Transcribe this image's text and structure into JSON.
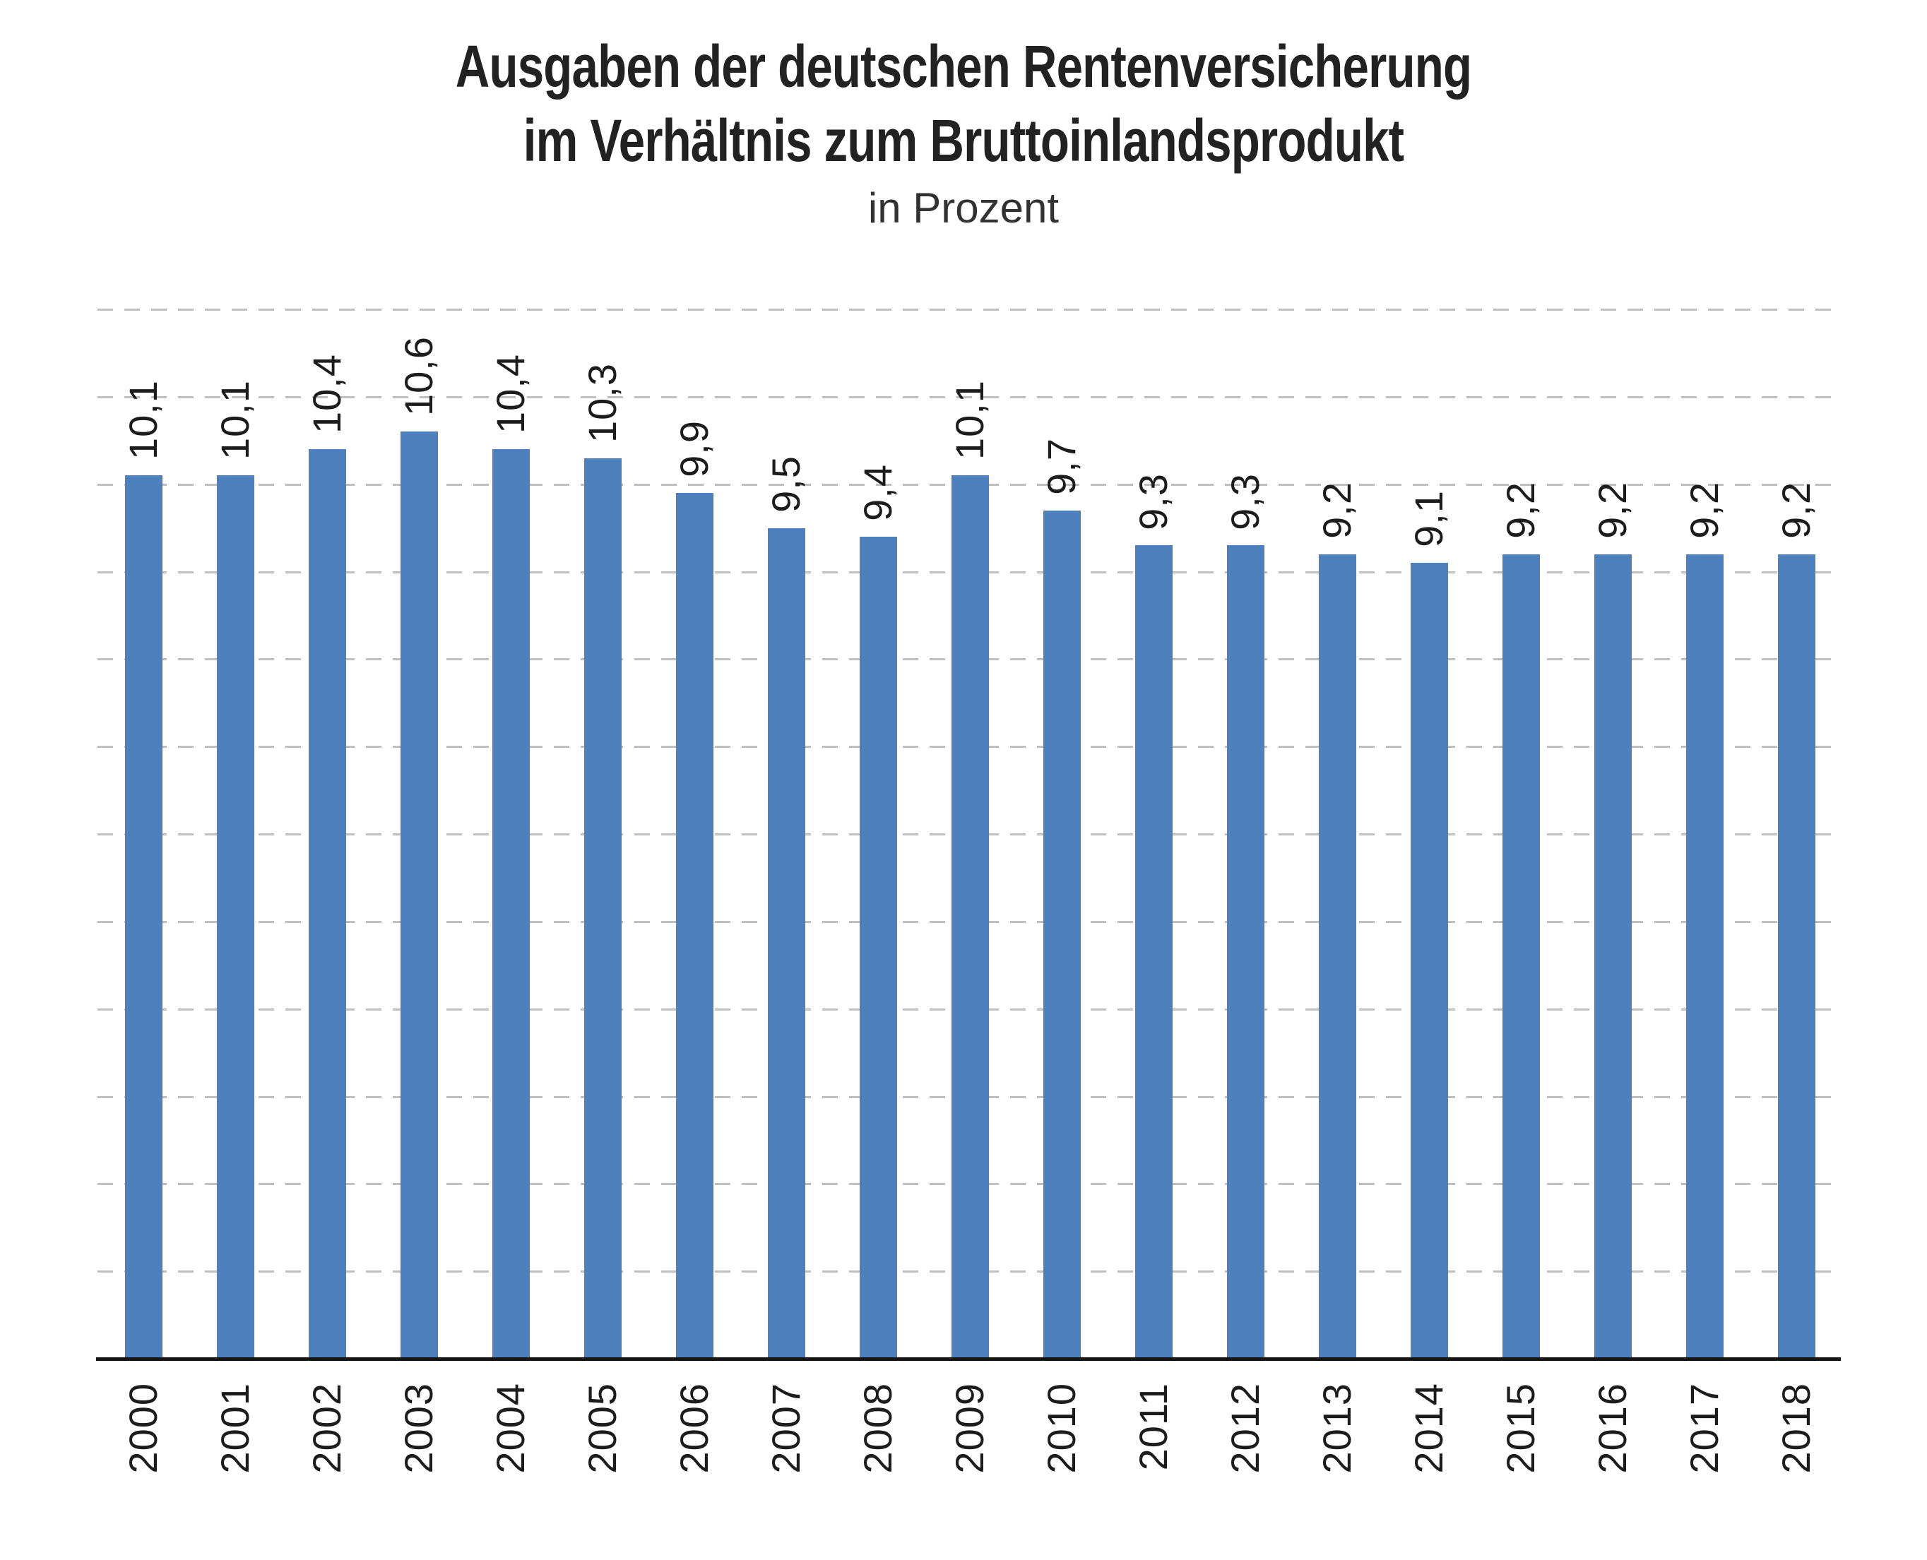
{
  "title": {
    "line1": "Ausgaben der deutschen Rentenversicherung",
    "line2": "im Verhältnis zum Bruttoinlandsprodukt",
    "subtitle": "in Prozent"
  },
  "chart_data": {
    "type": "bar",
    "title": "Ausgaben der deutschen Rentenversicherung im Verhältnis zum Bruttoinlandsprodukt",
    "subtitle": "in Prozent",
    "xlabel": "",
    "ylabel": "",
    "categories": [
      "2000",
      "2001",
      "2002",
      "2003",
      "2004",
      "2005",
      "2006",
      "2007",
      "2008",
      "2009",
      "2010",
      "2011",
      "2012",
      "2013",
      "2014",
      "2015",
      "2016",
      "2017",
      "2018"
    ],
    "values": [
      10.1,
      10.1,
      10.4,
      10.6,
      10.4,
      10.3,
      9.9,
      9.5,
      9.4,
      10.1,
      9.7,
      9.3,
      9.3,
      9.2,
      9.1,
      9.2,
      9.2,
      9.2,
      9.2
    ],
    "value_labels": [
      "10,1",
      "10,1",
      "10,4",
      "10,6",
      "10,4",
      "10,3",
      "9,9",
      "9,5",
      "9,4",
      "10,1",
      "9,7",
      "9,3",
      "9,3",
      "9,2",
      "9,1",
      "9,2",
      "9,2",
      "9,2",
      "9,2"
    ],
    "ylim": [
      0,
      12
    ],
    "grid": {
      "step": 1,
      "style": "dashed",
      "orientation": "horizontal",
      "y_tick_labels_visible": false
    },
    "legend": "none",
    "label_rotation_degrees": 90,
    "colors": {
      "bar": "#4d80bc",
      "grid": "#bfbfbf",
      "axis": "#141414",
      "label": "#1c1c1c"
    }
  }
}
